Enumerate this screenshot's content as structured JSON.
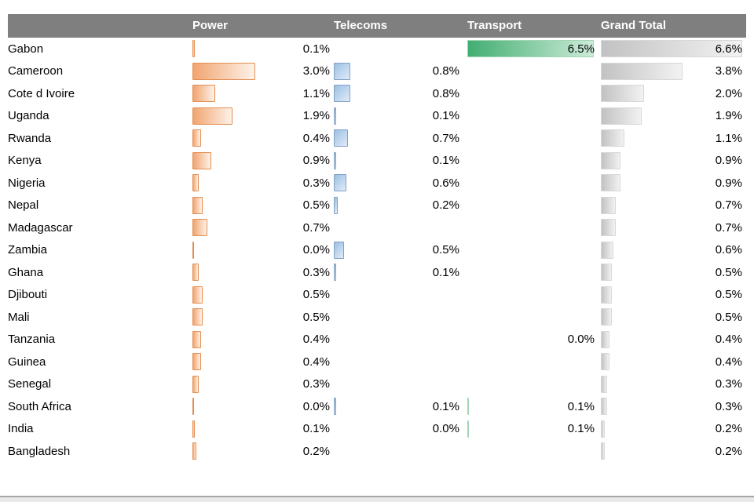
{
  "table": {
    "columns": [
      {
        "key": "power",
        "label": "Power"
      },
      {
        "key": "telecoms",
        "label": "Telecoms"
      },
      {
        "key": "transport",
        "label": "Transport"
      },
      {
        "key": "grand_total",
        "label": "Grand Total"
      }
    ],
    "rows": [
      {
        "country": "Gabon",
        "power": {
          "display": "0.1%",
          "value": 0.1
        },
        "telecoms": null,
        "transport": {
          "display": "6.5%",
          "value": 6.5
        },
        "grand_total": {
          "display": "6.6%",
          "value": 6.6
        }
      },
      {
        "country": "Cameroon",
        "power": {
          "display": "3.0%",
          "value": 3.0
        },
        "telecoms": {
          "display": "0.8%",
          "value": 0.8
        },
        "transport": null,
        "grand_total": {
          "display": "3.8%",
          "value": 3.8
        }
      },
      {
        "country": "Cote d Ivoire",
        "power": {
          "display": "1.1%",
          "value": 1.1
        },
        "telecoms": {
          "display": "0.8%",
          "value": 0.8
        },
        "transport": null,
        "grand_total": {
          "display": "2.0%",
          "value": 2.0
        }
      },
      {
        "country": "Uganda",
        "power": {
          "display": "1.9%",
          "value": 1.9
        },
        "telecoms": {
          "display": "0.1%",
          "value": 0.1
        },
        "transport": null,
        "grand_total": {
          "display": "1.9%",
          "value": 1.9
        }
      },
      {
        "country": "Rwanda",
        "power": {
          "display": "0.4%",
          "value": 0.4
        },
        "telecoms": {
          "display": "0.7%",
          "value": 0.7
        },
        "transport": null,
        "grand_total": {
          "display": "1.1%",
          "value": 1.1
        }
      },
      {
        "country": "Kenya",
        "power": {
          "display": "0.9%",
          "value": 0.9
        },
        "telecoms": {
          "display": "0.1%",
          "value": 0.1
        },
        "transport": null,
        "grand_total": {
          "display": "0.9%",
          "value": 0.9
        }
      },
      {
        "country": "Nigeria",
        "power": {
          "display": "0.3%",
          "value": 0.3
        },
        "telecoms": {
          "display": "0.6%",
          "value": 0.6
        },
        "transport": null,
        "grand_total": {
          "display": "0.9%",
          "value": 0.9
        }
      },
      {
        "country": "Nepal",
        "power": {
          "display": "0.5%",
          "value": 0.5
        },
        "telecoms": {
          "display": "0.2%",
          "value": 0.2
        },
        "transport": null,
        "grand_total": {
          "display": "0.7%",
          "value": 0.7
        }
      },
      {
        "country": "Madagascar",
        "power": {
          "display": "0.7%",
          "value": 0.7
        },
        "telecoms": null,
        "transport": null,
        "grand_total": {
          "display": "0.7%",
          "value": 0.7
        }
      },
      {
        "country": "Zambia",
        "power": {
          "display": "0.0%",
          "value": 0,
          "sliver": true
        },
        "telecoms": {
          "display": "0.5%",
          "value": 0.5
        },
        "transport": null,
        "grand_total": {
          "display": "0.6%",
          "value": 0.6
        }
      },
      {
        "country": "Ghana",
        "power": {
          "display": "0.3%",
          "value": 0.3
        },
        "telecoms": {
          "display": "0.1%",
          "value": 0.1
        },
        "transport": null,
        "grand_total": {
          "display": "0.5%",
          "value": 0.5
        }
      },
      {
        "country": "Djibouti",
        "power": {
          "display": "0.5%",
          "value": 0.5
        },
        "telecoms": null,
        "transport": null,
        "grand_total": {
          "display": "0.5%",
          "value": 0.5
        }
      },
      {
        "country": "Mali",
        "power": {
          "display": "0.5%",
          "value": 0.5
        },
        "telecoms": null,
        "transport": null,
        "grand_total": {
          "display": "0.5%",
          "value": 0.5
        }
      },
      {
        "country": "Tanzania",
        "power": {
          "display": "0.4%",
          "value": 0.4
        },
        "telecoms": null,
        "transport": {
          "display": "0.0%",
          "value": 0
        },
        "grand_total": {
          "display": "0.4%",
          "value": 0.4
        }
      },
      {
        "country": "Guinea",
        "power": {
          "display": "0.4%",
          "value": 0.4
        },
        "telecoms": null,
        "transport": null,
        "grand_total": {
          "display": "0.4%",
          "value": 0.4
        }
      },
      {
        "country": "Senegal",
        "power": {
          "display": "0.3%",
          "value": 0.3
        },
        "telecoms": null,
        "transport": null,
        "grand_total": {
          "display": "0.3%",
          "value": 0.3
        }
      },
      {
        "country": "South Africa",
        "power": {
          "display": "0.0%",
          "value": 0,
          "sliver": true
        },
        "telecoms": {
          "display": "0.1%",
          "value": 0.1
        },
        "transport": {
          "display": "0.1%",
          "value": 0.1
        },
        "grand_total": {
          "display": "0.3%",
          "value": 0.3
        }
      },
      {
        "country": "India",
        "power": {
          "display": "0.1%",
          "value": 0.1
        },
        "telecoms": {
          "display": "0.0%",
          "value": 0
        },
        "transport": {
          "display": "0.1%",
          "value": 0.1
        },
        "grand_total": {
          "display": "0.2%",
          "value": 0.2
        }
      },
      {
        "country": "Bangladesh",
        "power": {
          "display": "0.2%",
          "value": 0.2
        },
        "telecoms": null,
        "transport": null,
        "grand_total": {
          "display": "0.2%",
          "value": 0.2
        }
      }
    ]
  },
  "colors": {
    "header_background": "#7f7f7f",
    "header_text": "#ffffff",
    "power_bar": "#f1a571",
    "power_border": "#e48f52",
    "telecoms_bar": "#9cc0e4",
    "telecoms_border": "#84a0c6",
    "transport_bar": "#42ae71",
    "transport_border": "#a2d6b6",
    "grand_total_bar": "#c2c2c2",
    "grand_total_border": "#d8d8d8"
  },
  "chart_data": {
    "type": "bar",
    "orientation": "horizontal",
    "unit": "%",
    "title": "",
    "xlabel": "",
    "ylabel": "",
    "legend_position": "none",
    "categories": [
      "Gabon",
      "Cameroon",
      "Cote d Ivoire",
      "Uganda",
      "Rwanda",
      "Kenya",
      "Nigeria",
      "Nepal",
      "Madagascar",
      "Zambia",
      "Ghana",
      "Djibouti",
      "Mali",
      "Tanzania",
      "Guinea",
      "Senegal",
      "South Africa",
      "India",
      "Bangladesh"
    ],
    "series": [
      {
        "name": "Power",
        "values": [
          0.1,
          3.0,
          1.1,
          1.9,
          0.4,
          0.9,
          0.3,
          0.5,
          0.7,
          0.0,
          0.3,
          0.5,
          0.5,
          0.4,
          0.4,
          0.3,
          0.0,
          0.1,
          0.2
        ]
      },
      {
        "name": "Telecoms",
        "values": [
          null,
          0.8,
          0.8,
          0.1,
          0.7,
          0.1,
          0.6,
          0.2,
          null,
          0.5,
          0.1,
          null,
          null,
          null,
          null,
          null,
          0.1,
          0.0,
          null
        ]
      },
      {
        "name": "Transport",
        "values": [
          6.5,
          null,
          null,
          null,
          null,
          null,
          null,
          null,
          null,
          null,
          null,
          null,
          null,
          0.0,
          null,
          null,
          0.1,
          0.1,
          null
        ]
      },
      {
        "name": "Grand Total",
        "values": [
          6.6,
          3.8,
          2.0,
          1.9,
          1.1,
          0.9,
          0.9,
          0.7,
          0.7,
          0.6,
          0.5,
          0.5,
          0.5,
          0.4,
          0.4,
          0.3,
          0.3,
          0.2,
          0.2
        ]
      }
    ],
    "value_axis_range": [
      0,
      6.6
    ]
  }
}
